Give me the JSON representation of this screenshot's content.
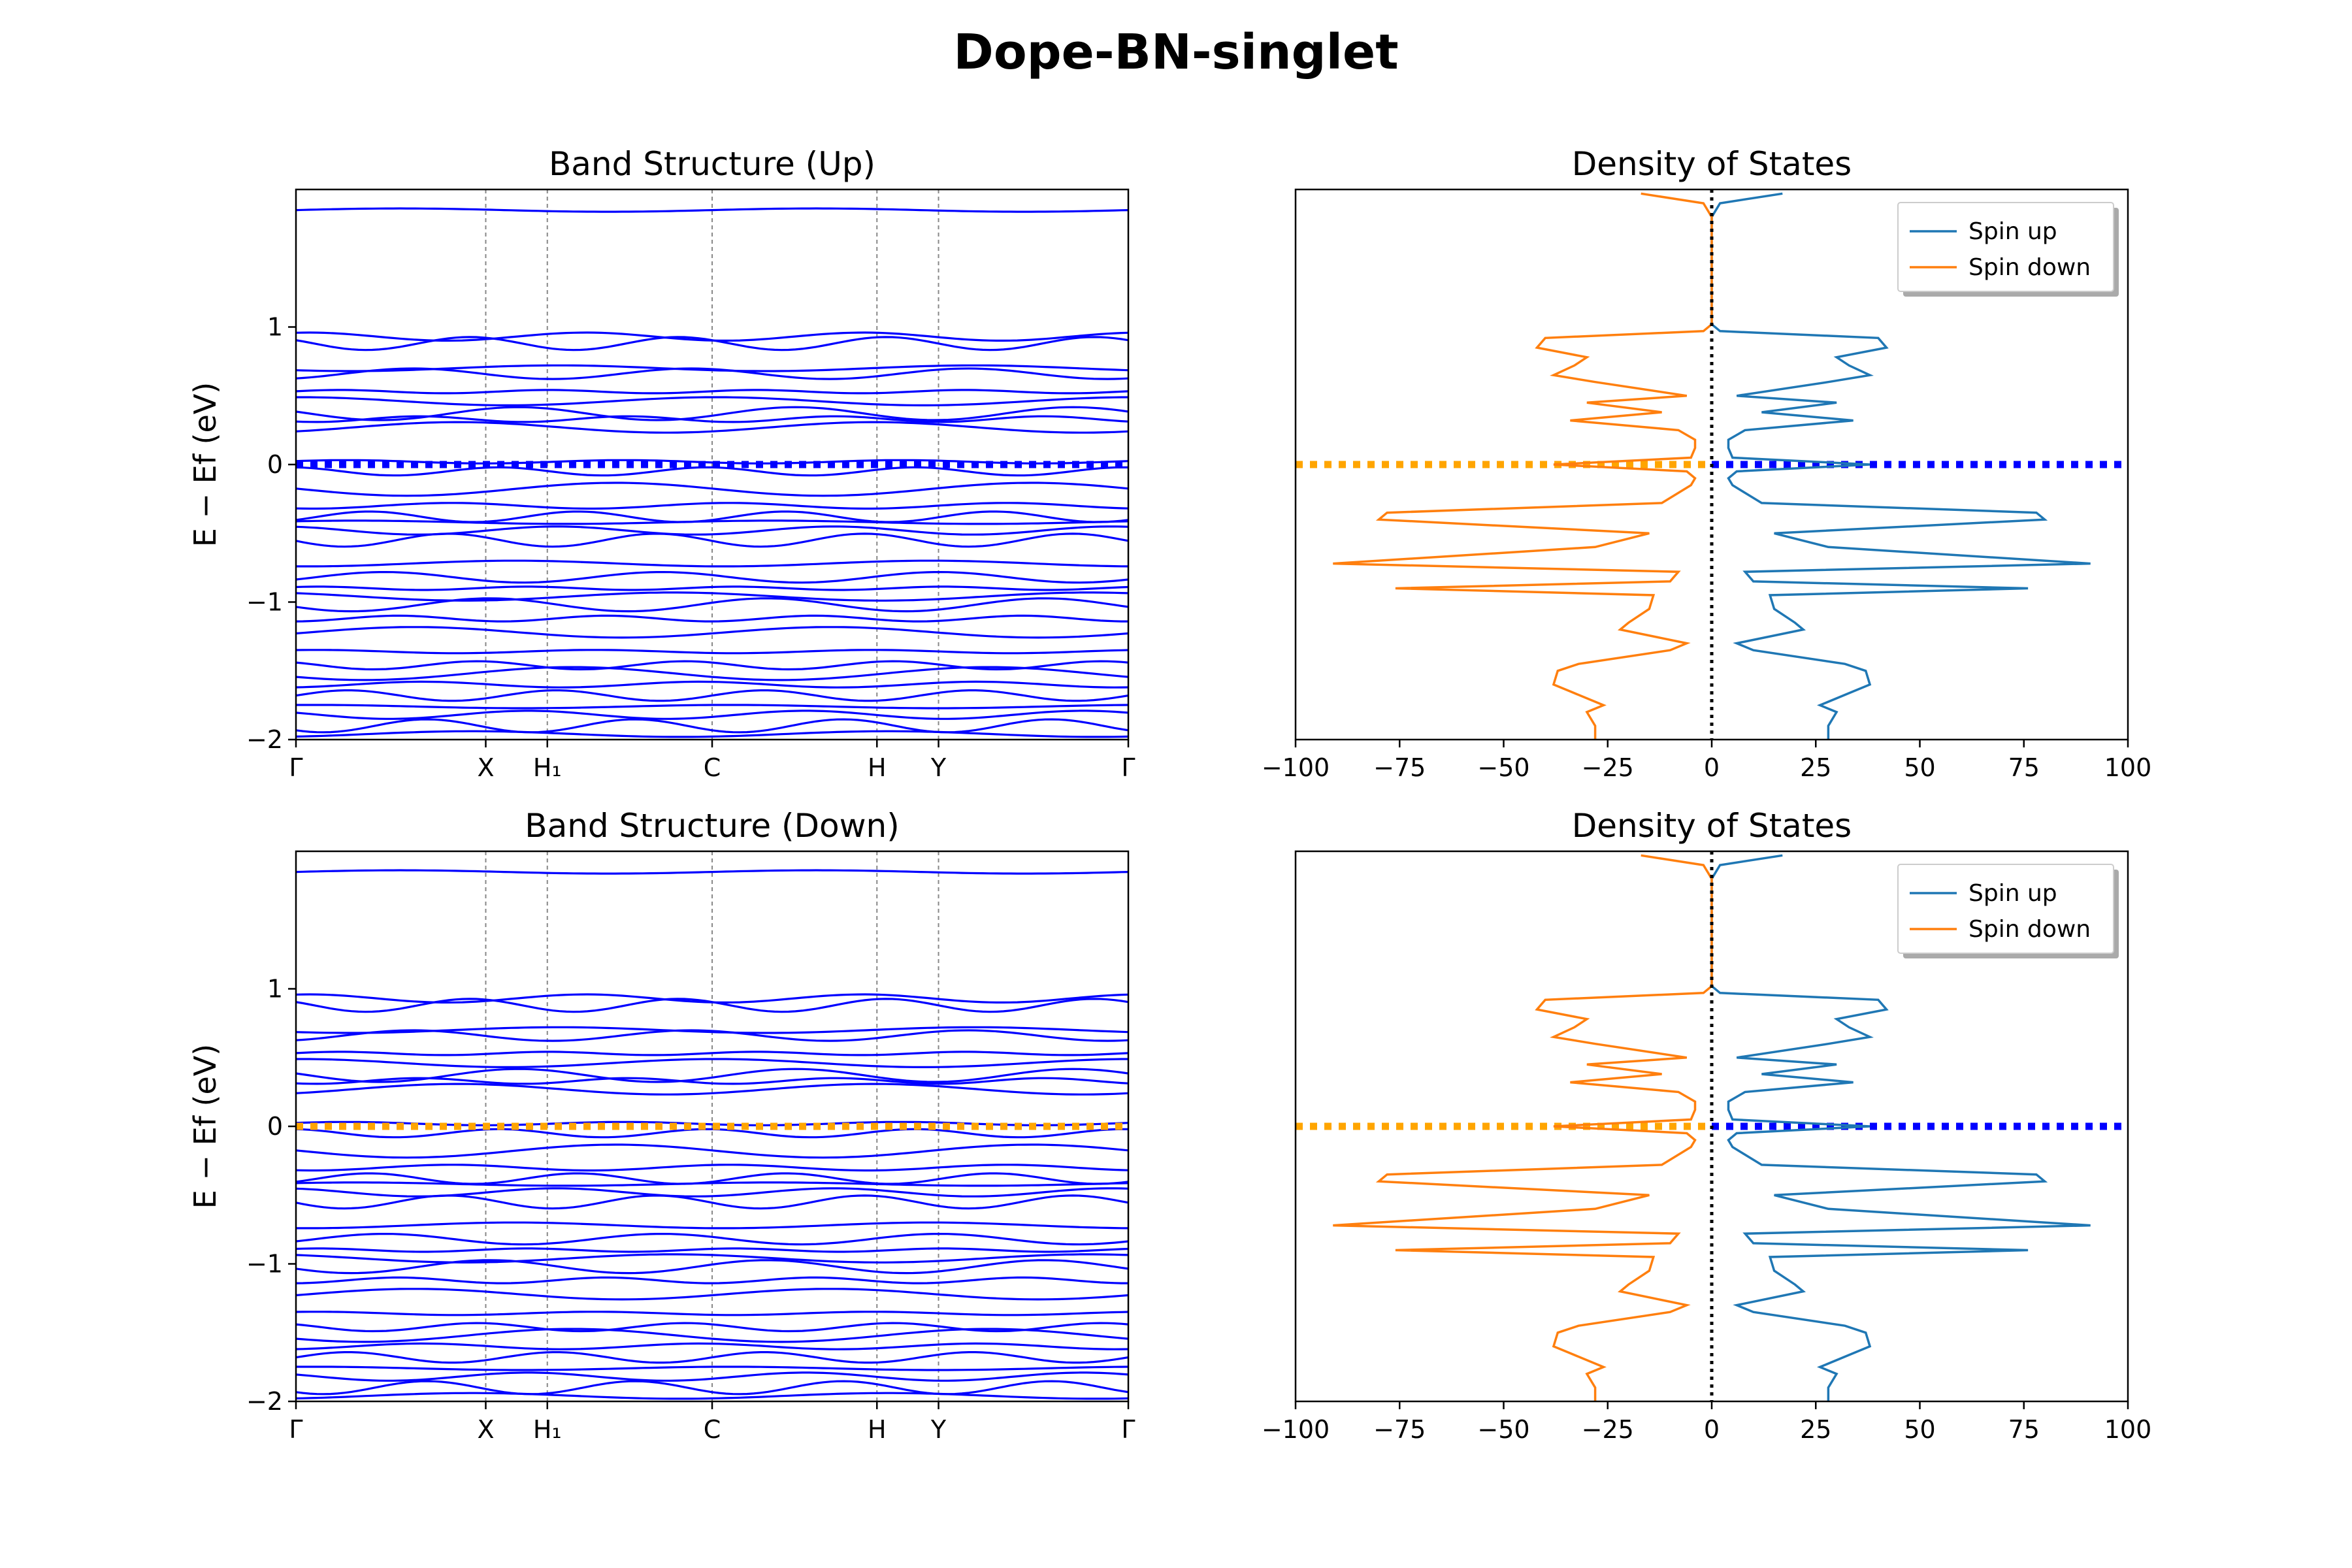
{
  "suptitle": "Dope-BN-singlet",
  "colors": {
    "band": "#0000ff",
    "spin_up": "#1f77b4",
    "spin_down": "#ff7f0e",
    "fermi_blue": "#0000ff",
    "fermi_orange": "#ffa500",
    "kline": "#888888",
    "zero_line": "#000000"
  },
  "chart_data": [
    {
      "type": "line",
      "title": "Band Structure (Up)",
      "ylabel": "E − Ef (eV)",
      "ylim": [
        -2,
        2
      ],
      "yticks": [
        -2,
        -1,
        0,
        1
      ],
      "kpoints": [
        {
          "label": "Γ",
          "pos": 0.0
        },
        {
          "label": "X",
          "pos": 0.228
        },
        {
          "label": "H₁",
          "pos": 0.302
        },
        {
          "label": "C",
          "pos": 0.5
        },
        {
          "label": "H",
          "pos": 0.698
        },
        {
          "label": "Y",
          "pos": 0.772
        },
        {
          "label": "Γ",
          "pos": 1.0
        }
      ],
      "fermi_color": "#0000ff",
      "band_energies": [
        1.85,
        0.93,
        0.88,
        0.7,
        0.66,
        0.53,
        0.46,
        0.37,
        0.33,
        0.27,
        0.02,
        -0.05,
        -0.18,
        -0.3,
        -0.38,
        -0.42,
        -0.48,
        -0.55,
        -0.72,
        -0.82,
        -0.9,
        -0.96,
        -1.02,
        -1.12,
        -1.22,
        -1.36,
        -1.46,
        -1.52,
        -1.6,
        -1.68,
        -1.76,
        -1.82,
        -1.9,
        -1.96
      ]
    },
    {
      "type": "line",
      "title": "Density of States",
      "xlim": [
        -100,
        100
      ],
      "xticks": [
        -100,
        -75,
        -50,
        -25,
        0,
        25,
        50,
        75,
        100
      ],
      "ylim": [
        -2,
        2
      ],
      "legend": "top-right",
      "series": [
        {
          "name": "Spin up",
          "sign": 1
        },
        {
          "name": "Spin down",
          "sign": -1
        }
      ],
      "energy": [
        -2.0,
        -1.9,
        -1.8,
        -1.75,
        -1.65,
        -1.6,
        -1.5,
        -1.45,
        -1.35,
        -1.3,
        -1.2,
        -1.15,
        -1.05,
        -0.95,
        -0.9,
        -0.85,
        -0.78,
        -0.72,
        -0.6,
        -0.5,
        -0.4,
        -0.35,
        -0.28,
        -0.15,
        -0.1,
        -0.05,
        0.0,
        0.05,
        0.12,
        0.18,
        0.25,
        0.32,
        0.38,
        0.45,
        0.5,
        0.6,
        0.65,
        0.72,
        0.78,
        0.85,
        0.92,
        0.97,
        1.02,
        1.1,
        1.3,
        1.5,
        1.7,
        1.8,
        1.9,
        1.97
      ],
      "dos": [
        28,
        28,
        30,
        26,
        34,
        38,
        37,
        32,
        10,
        6,
        22,
        20,
        15,
        14,
        76,
        10,
        8,
        91,
        28,
        15,
        80,
        78,
        12,
        5,
        4,
        6,
        38,
        5,
        4,
        4,
        8,
        34,
        12,
        30,
        6,
        28,
        38,
        33,
        30,
        42,
        40,
        2,
        0,
        0,
        0,
        0,
        0,
        0,
        2,
        17
      ]
    },
    {
      "type": "line",
      "title": "Band Structure (Down)",
      "ylabel": "E − Ef (eV)",
      "ylim": [
        -2,
        2
      ],
      "yticks": [
        -2,
        -1,
        0,
        1
      ],
      "kpoints": [
        {
          "label": "Γ",
          "pos": 0.0
        },
        {
          "label": "X",
          "pos": 0.228
        },
        {
          "label": "H₁",
          "pos": 0.302
        },
        {
          "label": "C",
          "pos": 0.5
        },
        {
          "label": "H",
          "pos": 0.698
        },
        {
          "label": "Y",
          "pos": 0.772
        },
        {
          "label": "Γ",
          "pos": 1.0
        }
      ],
      "fermi_color": "#ffa500",
      "band_energies": [
        1.85,
        0.93,
        0.88,
        0.7,
        0.66,
        0.53,
        0.46,
        0.37,
        0.33,
        0.27,
        0.02,
        -0.05,
        -0.18,
        -0.3,
        -0.38,
        -0.42,
        -0.48,
        -0.55,
        -0.72,
        -0.82,
        -0.9,
        -0.96,
        -1.02,
        -1.12,
        -1.22,
        -1.36,
        -1.46,
        -1.52,
        -1.6,
        -1.68,
        -1.76,
        -1.82,
        -1.9,
        -1.96
      ]
    },
    {
      "type": "line",
      "title": "Density of States",
      "xlim": [
        -100,
        100
      ],
      "xticks": [
        -100,
        -75,
        -50,
        -25,
        0,
        25,
        50,
        75,
        100
      ],
      "ylim": [
        -2,
        2
      ],
      "legend": "top-right",
      "series": [
        {
          "name": "Spin up",
          "sign": 1
        },
        {
          "name": "Spin down",
          "sign": -1
        }
      ],
      "energy": [
        -2.0,
        -1.9,
        -1.8,
        -1.75,
        -1.65,
        -1.6,
        -1.5,
        -1.45,
        -1.35,
        -1.3,
        -1.2,
        -1.15,
        -1.05,
        -0.95,
        -0.9,
        -0.85,
        -0.78,
        -0.72,
        -0.6,
        -0.5,
        -0.4,
        -0.35,
        -0.28,
        -0.15,
        -0.1,
        -0.05,
        0.0,
        0.05,
        0.12,
        0.18,
        0.25,
        0.32,
        0.38,
        0.45,
        0.5,
        0.6,
        0.65,
        0.72,
        0.78,
        0.85,
        0.92,
        0.97,
        1.02,
        1.1,
        1.3,
        1.5,
        1.7,
        1.8,
        1.9,
        1.97
      ],
      "dos": [
        28,
        28,
        30,
        26,
        34,
        38,
        37,
        32,
        10,
        6,
        22,
        20,
        15,
        14,
        76,
        10,
        8,
        91,
        28,
        15,
        80,
        78,
        12,
        5,
        4,
        6,
        38,
        5,
        4,
        4,
        8,
        34,
        12,
        30,
        6,
        28,
        38,
        33,
        30,
        42,
        40,
        2,
        0,
        0,
        0,
        0,
        0,
        0,
        2,
        17
      ]
    }
  ]
}
